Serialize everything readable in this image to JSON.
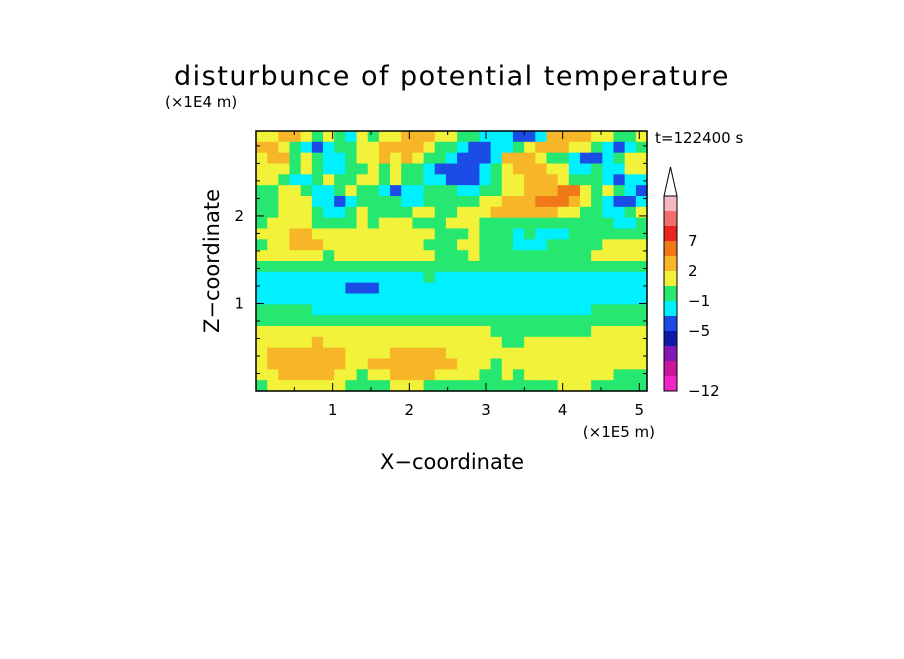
{
  "chart_data": {
    "type": "heatmap",
    "title": "disturbunce of potential temperature",
    "xlabel": "X−coordinate",
    "ylabel": "Z−coordinate",
    "x_unit": "(×1E5 m)",
    "y_unit": "(×1E4 m)",
    "time_label": "t=122400 s",
    "xlim": [
      0,
      5.1
    ],
    "ylim": [
      0,
      2.97
    ],
    "x_ticks": [
      "1",
      "2",
      "3",
      "4",
      "5"
    ],
    "y_ticks": [
      "1",
      "2"
    ],
    "colorbar_labels": [
      "7",
      "2",
      "−1",
      "−5",
      "−12"
    ],
    "colorbar_levels_top_to_bottom": [
      {
        "color": "#f5b8c2",
        "range": "above 7"
      },
      {
        "color": "#f07070",
        "range": "5 to 7"
      },
      {
        "color": "#e8261f",
        "range": "4 to 5"
      },
      {
        "color": "#f07818",
        "range": "2 to 4"
      },
      {
        "color": "#f7b628",
        "range": "1 to 2"
      },
      {
        "color": "#f2f23a",
        "range": "0 to 1"
      },
      {
        "color": "#26e870",
        "range": "-1 to 0"
      },
      {
        "color": "#00f0ff",
        "range": "-2 to -1"
      },
      {
        "color": "#1c4ce6",
        "range": "-3 to -2"
      },
      {
        "color": "#101aa8",
        "range": "-5 to -3"
      },
      {
        "color": "#8217b3",
        "range": "-8 to -5"
      },
      {
        "color": "#c8169c",
        "range": "-10 to -8"
      },
      {
        "color": "#f025c8",
        "range": "below -10"
      }
    ],
    "field_description": "Banded field of potential temperature disturbance; warm (yellow/orange/red) layers near z=0.3-0.6, 1.7-1.9 and 2.0-2.8 (red-orange near x=3.5-4.2, z=2.1); cool (cyan/blue) layer near z=1.0-1.4 and blue streaks near z=2.3 and 2.7.",
    "field_rows_top_to_bottom_z_0_to_2.97": [
      "YYOOYGYGCYGYYOOOYYGGCCCBBCOOOOYYGGY",
      "OOYGCBCGGYYOOOOYGGCBBCCGYOOOYYGCBCG",
      "YOOGYGCCGYYOYOYGGCBBBCOOOYGGCBBCGYY",
      "YYYGYGCCGGYGYGGCBBBBCGYOOOYYCCGCCYY",
      "YYGCCGYGGYYGYGGCCBBBCGYYOOOYGGGCBCC",
      "GGYYGCCGYGGCBCCGGGCCGGYYOOORRYGYGCB",
      "GGYYYCCBCGGGGCCGGGGGYYOOORRROYGCBBC",
      "GGYYYGCCGYGGGGYYGGYYYOOOOOOYYGGCCGY",
      "GYYYYGGGGYGYYYGGGYYYGGGGGGGGGGGGCCG",
      "YYYOOYYYYYYYYYYYGGGYGGGCGCCCGGGGGGG",
      "GYYOOOYYYYYYYYYGGGYYGGGCCCGGGGGYYYY",
      "YYYYYYGYYYYYYYYYGGGYGGGGGGGGGGYYYYY",
      "GGGGGGGGGGGGGGGGGGGGGGGGGGGGGGGGGGG",
      "CCCCCCCCCCCCCCCGCCCCCCCCCCCCCCCCCCC",
      "CCCCCCCCBBBCCCCCCCCCCCCCCCCCCCCCCCC",
      "CCCCCCCCCCCCCCCCCCCCCCCCCCCCCCCCCCC",
      "GGGGGCCCCCCCCCCCCCCCCCCCCCCCCCGGGGG",
      "GGGGGGGGGGGGGGGGGGGGGGGGGGGGGGGGGGG",
      "YYYYYYYYYYYYYYYYYYYYYGGGGGGGGGYYYYY",
      "YYYYYOYYYYYYYYYYYYYYYYGGYYYYYYYYYYY",
      "YOOOOOOOYYYYOOOOOYYYYYYYYYYYYYYYYYY",
      "YOOOOOOOYYOOOOOOOOYYYGYYYYYYYYYYYYY",
      "YYOOOOOYYGYYOOOOYYYYGGYGYYYYYYYYGGG",
      "GYYYYYYYGGGGYYYGGGGGGGGGGGGYYYGGGGG"
    ]
  }
}
